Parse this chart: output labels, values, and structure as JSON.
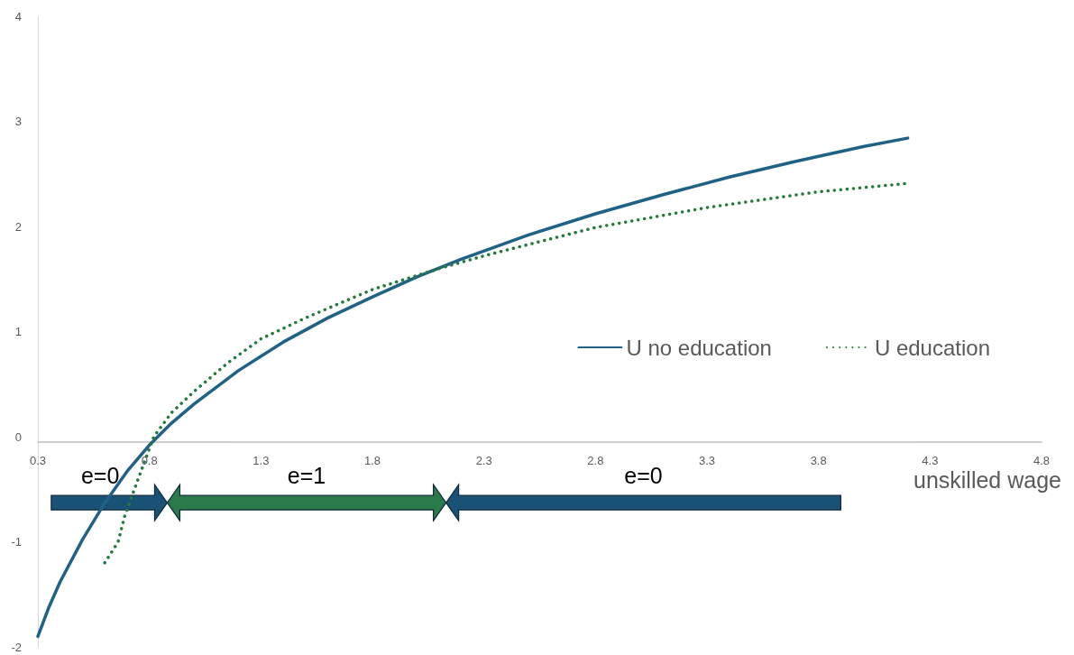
{
  "chart_data": {
    "type": "line",
    "xlabel": "unskilled wage",
    "xlim": [
      0.3,
      4.8
    ],
    "xticks": [
      0.3,
      0.8,
      1.3,
      1.8,
      2.3,
      2.8,
      3.3,
      3.8,
      4.3,
      4.8
    ],
    "ylim": [
      -2,
      4
    ],
    "yticks": [
      -2,
      -1,
      0,
      1,
      2,
      3,
      4
    ],
    "grid": false,
    "legend": "right",
    "marker": "none",
    "annotations": [
      "e=0",
      "e=1",
      "e=0"
    ],
    "series": [
      {
        "name": "U no education",
        "color": "#1f6286",
        "line_style": "solid",
        "x": [
          0.3,
          0.35,
          0.4,
          0.5,
          0.6,
          0.7,
          0.8,
          0.9,
          1.0,
          1.2,
          1.4,
          1.6,
          1.8,
          2.0,
          2.2,
          2.5,
          2.8,
          3.1,
          3.4,
          3.7,
          4.0,
          4.2
        ],
        "values": [
          -1.9,
          -1.62,
          -1.38,
          -0.98,
          -0.63,
          -0.33,
          -0.08,
          0.13,
          0.31,
          0.63,
          0.9,
          1.13,
          1.33,
          1.52,
          1.69,
          1.92,
          2.12,
          2.3,
          2.47,
          2.62,
          2.76,
          2.84
        ]
      },
      {
        "name": "U education",
        "color": "#237a3b",
        "line_style": "dotted",
        "x": [
          0.6,
          0.66,
          0.69,
          0.75,
          0.82,
          0.9,
          1.0,
          1.15,
          1.3,
          1.5,
          1.8,
          2.1,
          2.3,
          2.8,
          3.3,
          3.8,
          4.2
        ],
        "values": [
          -1.2,
          -1.0,
          -0.75,
          -0.4,
          0,
          0.23,
          0.43,
          0.7,
          0.93,
          1.13,
          1.4,
          1.6,
          1.72,
          1.99,
          2.18,
          2.33,
          2.41
        ]
      }
    ]
  }
}
